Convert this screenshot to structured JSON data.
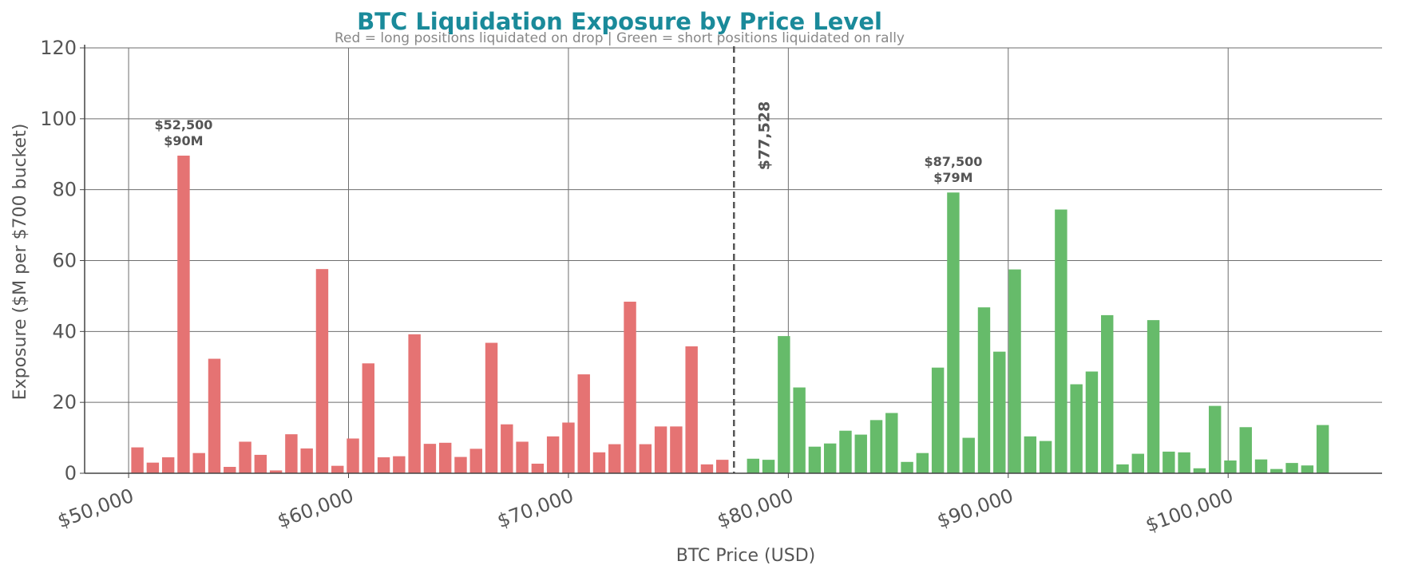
{
  "chart_data": {
    "type": "bar",
    "title": "BTC Liquidation Exposure by Price Level",
    "subtitle": "Red = long positions liquidated on drop  |  Green = short positions liquidated on rally",
    "xlabel": "BTC Price (USD)",
    "ylabel": "Exposure ($M per $700 bucket)",
    "xlim": [
      48000,
      107000
    ],
    "ylim": [
      0,
      120
    ],
    "x_ticks": [
      50000,
      60000,
      70000,
      80000,
      90000,
      100000
    ],
    "x_tick_labels": [
      "$50,000",
      "$60,000",
      "$70,000",
      "$80,000",
      "$90,000",
      "$100,000"
    ],
    "y_ticks": [
      0,
      20,
      40,
      60,
      80,
      100,
      120
    ],
    "y_tick_labels": [
      "0",
      "20",
      "40",
      "60",
      "80",
      "100",
      "120"
    ],
    "grid": true,
    "bucket_width": 700,
    "current_price": 77528,
    "current_price_label": "$77,528",
    "colors": {
      "title": "#1a8a9a",
      "long": "#e57373",
      "short": "#66bb6a",
      "grid": "#6e6e6e",
      "axis": "#444444",
      "marker": "#555555"
    },
    "series": [
      {
        "name": "Red = long positions liquidated on drop",
        "color": "#e57373",
        "x": [
          50400,
          51100,
          51800,
          52500,
          53200,
          53900,
          54600,
          55300,
          56000,
          56700,
          57400,
          58100,
          58800,
          59500,
          60200,
          60900,
          61600,
          62300,
          63000,
          63700,
          64400,
          65100,
          65800,
          66500,
          67200,
          67900,
          68600,
          69300,
          70000,
          70700,
          71400,
          72100,
          72800,
          73500,
          74200,
          74900,
          75600,
          76300,
          77000
        ],
        "values": [
          7.3,
          3.0,
          4.5,
          89.6,
          5.7,
          32.3,
          1.8,
          8.9,
          5.2,
          0.8,
          11.0,
          7.0,
          57.6,
          2.1,
          9.8,
          31.0,
          4.5,
          4.8,
          39.2,
          8.3,
          8.6,
          4.6,
          6.9,
          36.8,
          13.8,
          8.9,
          2.7,
          10.4,
          14.3,
          27.9,
          5.9,
          8.2,
          48.4,
          8.2,
          13.2,
          13.2,
          35.8,
          2.5,
          3.8
        ]
      },
      {
        "name": "Green = short positions liquidated on rally",
        "color": "#66bb6a",
        "x": [
          78400,
          79100,
          79800,
          80500,
          81200,
          81900,
          82600,
          83300,
          84000,
          84700,
          85400,
          86100,
          86800,
          87500,
          88200,
          88900,
          89600,
          90300,
          91000,
          91700,
          92400,
          93100,
          93800,
          94500,
          95200,
          95900,
          96600,
          97300,
          98000,
          98700,
          99400,
          100100,
          100800,
          101500,
          102200,
          102900,
          103600,
          104300
        ],
        "values": [
          4.1,
          3.8,
          38.7,
          24.2,
          7.5,
          8.4,
          12.0,
          10.9,
          15.0,
          17.0,
          3.2,
          5.7,
          29.8,
          79.2,
          10.0,
          46.8,
          34.3,
          57.5,
          10.4,
          9.1,
          74.4,
          25.1,
          28.7,
          44.6,
          2.5,
          5.5,
          43.2,
          6.1,
          5.9,
          1.4,
          19.0,
          3.6,
          13.0,
          3.9,
          1.2,
          2.9,
          2.2,
          13.6
        ]
      }
    ],
    "annotations": [
      {
        "x": 52500,
        "value": 89.6,
        "line1": "$52,500",
        "line2": "$90M"
      },
      {
        "x": 87500,
        "value": 79.2,
        "line1": "$87,500",
        "line2": "$79M"
      }
    ]
  }
}
